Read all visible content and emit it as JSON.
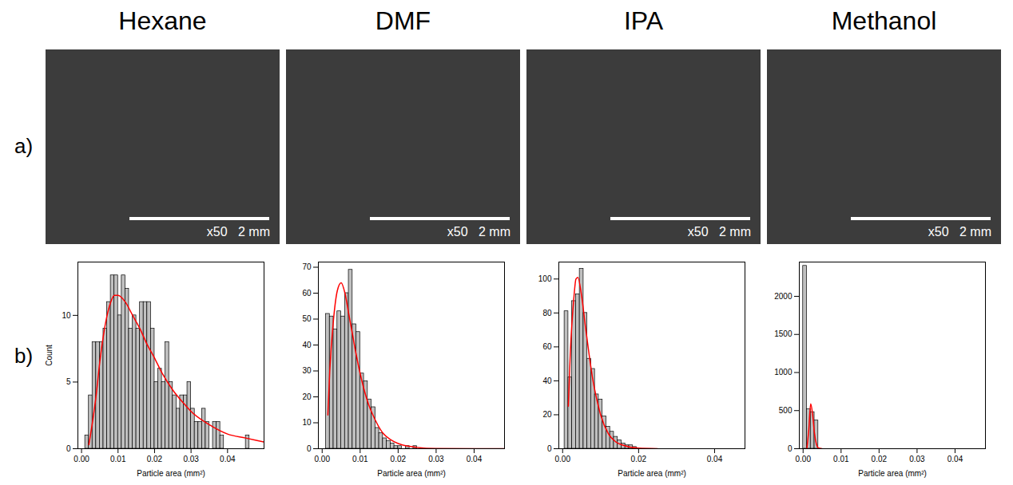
{
  "figure": {
    "row_labels": [
      "a)",
      "b)"
    ],
    "column_titles": [
      "Hexane",
      "DMF",
      "IPA",
      "Methanol"
    ],
    "images": [
      {
        "magnification": "x50",
        "scale_bar": "2 mm"
      },
      {
        "magnification": "x50",
        "scale_bar": "2 mm"
      },
      {
        "magnification": "x50",
        "scale_bar": "2 mm"
      },
      {
        "magnification": "x50",
        "scale_bar": "2 mm"
      }
    ]
  },
  "chart_data": [
    {
      "type": "histogram",
      "x_label": "Particle area (mm²)",
      "y_label": "Count",
      "color": "#c0c0c0",
      "bins": [
        0.001,
        0.002,
        0.003,
        0.004,
        0.005,
        0.006,
        0.007,
        0.008,
        0.009,
        0.01,
        0.011,
        0.012,
        0.013,
        0.014,
        0.015,
        0.016,
        0.017,
        0.018,
        0.019,
        0.02,
        0.021,
        0.022,
        0.023,
        0.024,
        0.025,
        0.026,
        0.027,
        0.028,
        0.029,
        0.03,
        0.031,
        0.032,
        0.033,
        0.034,
        0.035,
        0.036,
        0.037,
        0.038,
        0.039,
        0.04,
        0.041,
        0.042,
        0.043,
        0.044,
        0.045,
        0.046
      ],
      "counts": [
        1,
        4,
        8,
        8,
        8,
        9,
        11,
        13,
        13,
        10,
        13,
        12,
        9,
        10,
        9,
        11,
        11,
        11,
        9,
        5,
        6,
        5,
        8,
        5,
        4,
        3,
        4,
        4,
        5,
        3,
        2,
        2,
        3,
        2,
        0,
        2,
        2,
        1,
        0,
        0,
        0,
        0,
        0,
        0,
        1
      ],
      "fit": {
        "color": "#ff0000",
        "x": [
          0.002,
          0.003,
          0.004,
          0.005,
          0.006,
          0.007,
          0.008,
          0.009,
          0.01,
          0.012,
          0.014,
          0.016,
          0.018,
          0.02,
          0.022,
          0.025,
          0.028,
          0.03,
          0.035,
          0.04,
          0.045,
          0.05
        ],
        "values": [
          0.3,
          2,
          4,
          6.5,
          8.5,
          10,
          11,
          11.5,
          11.5,
          11,
          10,
          9,
          7.8,
          6.8,
          5.7,
          4.4,
          3.4,
          2.8,
          1.8,
          1.1,
          0.8,
          0.5
        ]
      },
      "xlim": [
        -0.001,
        0.05
      ],
      "xticks": [
        {
          "value": 0,
          "label": "0.00"
        },
        {
          "value": 0.01,
          "label": "0.01"
        },
        {
          "value": 0.02,
          "label": "0.02"
        },
        {
          "value": 0.03,
          "label": "0.03"
        },
        {
          "value": 0.04,
          "label": "0.04"
        }
      ],
      "ylim": [
        0,
        14
      ],
      "yticks": [
        0,
        5,
        10
      ]
    },
    {
      "type": "histogram",
      "x_label": "Particle area (mm²)",
      "color": "#c0c0c0",
      "bins": [
        0.001,
        0.002,
        0.003,
        0.004,
        0.005,
        0.006,
        0.007,
        0.008,
        0.009,
        0.01,
        0.011,
        0.012,
        0.013,
        0.014,
        0.015,
        0.016,
        0.017,
        0.018,
        0.019,
        0.02,
        0.021,
        0.022,
        0.023,
        0.024,
        0.025
      ],
      "counts": [
        52,
        51,
        46,
        53,
        51,
        60,
        69,
        48,
        45,
        29,
        26,
        19,
        16,
        8,
        6,
        4,
        3,
        2,
        1,
        1,
        0,
        1,
        0,
        1
      ],
      "fit": {
        "color": "#ff0000",
        "x": [
          0.0015,
          0.002,
          0.003,
          0.004,
          0.005,
          0.006,
          0.007,
          0.008,
          0.009,
          0.01,
          0.012,
          0.014,
          0.016,
          0.018,
          0.02,
          0.025,
          0.03,
          0.048
        ],
        "values": [
          13,
          30,
          50,
          61,
          64,
          60,
          52,
          44,
          36,
          29,
          18,
          11,
          6,
          3.5,
          2,
          0.5,
          0.1,
          0
        ]
      },
      "xlim": [
        -0.001,
        0.048
      ],
      "xticks": [
        {
          "value": 0,
          "label": "0.00"
        },
        {
          "value": 0.01,
          "label": "0.01"
        },
        {
          "value": 0.02,
          "label": "0.02"
        },
        {
          "value": 0.03,
          "label": "0.03"
        },
        {
          "value": 0.04,
          "label": "0.04"
        }
      ],
      "ylim": [
        0,
        72
      ],
      "yticks": [
        0,
        10,
        20,
        30,
        40,
        50,
        60,
        70
      ]
    },
    {
      "type": "histogram",
      "x_label": "Particle area (mm²)",
      "color": "#c0c0c0",
      "bins": [
        0.0005,
        0.0015,
        0.0025,
        0.0035,
        0.0045,
        0.0055,
        0.0065,
        0.0075,
        0.0085,
        0.0095,
        0.0105,
        0.0115,
        0.0125,
        0.0135,
        0.0145,
        0.0155,
        0.0165,
        0.0175,
        0.0185,
        0.0195
      ],
      "counts": [
        81,
        42,
        87,
        91,
        106,
        80,
        53,
        47,
        32,
        29,
        19,
        13,
        10,
        7,
        5,
        3,
        2,
        2,
        1
      ],
      "fit": {
        "color": "#ff0000",
        "x": [
          0.0015,
          0.002,
          0.003,
          0.0035,
          0.004,
          0.005,
          0.006,
          0.007,
          0.008,
          0.009,
          0.01,
          0.012,
          0.014,
          0.016,
          0.02,
          0.025
        ],
        "values": [
          25,
          55,
          90,
          100,
          101,
          90,
          72,
          55,
          40,
          29,
          20,
          9,
          4,
          2,
          0.3,
          0
        ]
      },
      "xlim": [
        -0.001,
        0.048
      ],
      "xticks": [
        {
          "value": 0,
          "label": "0.00"
        },
        {
          "value": 0.02,
          "label": "0.02"
        },
        {
          "value": 0.04,
          "label": "0.04"
        }
      ],
      "ylim": [
        0,
        110
      ],
      "yticks": [
        0,
        20,
        40,
        60,
        80,
        100
      ]
    },
    {
      "type": "histogram",
      "x_label": "Particle area (mm²)",
      "color": "#c0c0c0",
      "bins": [
        0,
        0.001,
        0.002,
        0.003,
        0.004
      ],
      "counts": [
        2400,
        520,
        480,
        370
      ],
      "fit": {
        "color": "#ff0000",
        "x": [
          0.001,
          0.0015,
          0.002,
          0.0025,
          0.003,
          0.0035,
          0.004,
          0.005
        ],
        "values": [
          0,
          250,
          590,
          450,
          200,
          60,
          10,
          0
        ]
      },
      "xlim": [
        -0.001,
        0.048
      ],
      "xticks": [
        {
          "value": 0,
          "label": "0.00"
        },
        {
          "value": 0.01,
          "label": "0.01"
        },
        {
          "value": 0.02,
          "label": "0.02"
        },
        {
          "value": 0.03,
          "label": "0.03"
        },
        {
          "value": 0.04,
          "label": "0.04"
        }
      ],
      "ylim": [
        0,
        2450
      ],
      "yticks": [
        0,
        500,
        1000,
        1500,
        2000
      ]
    }
  ]
}
